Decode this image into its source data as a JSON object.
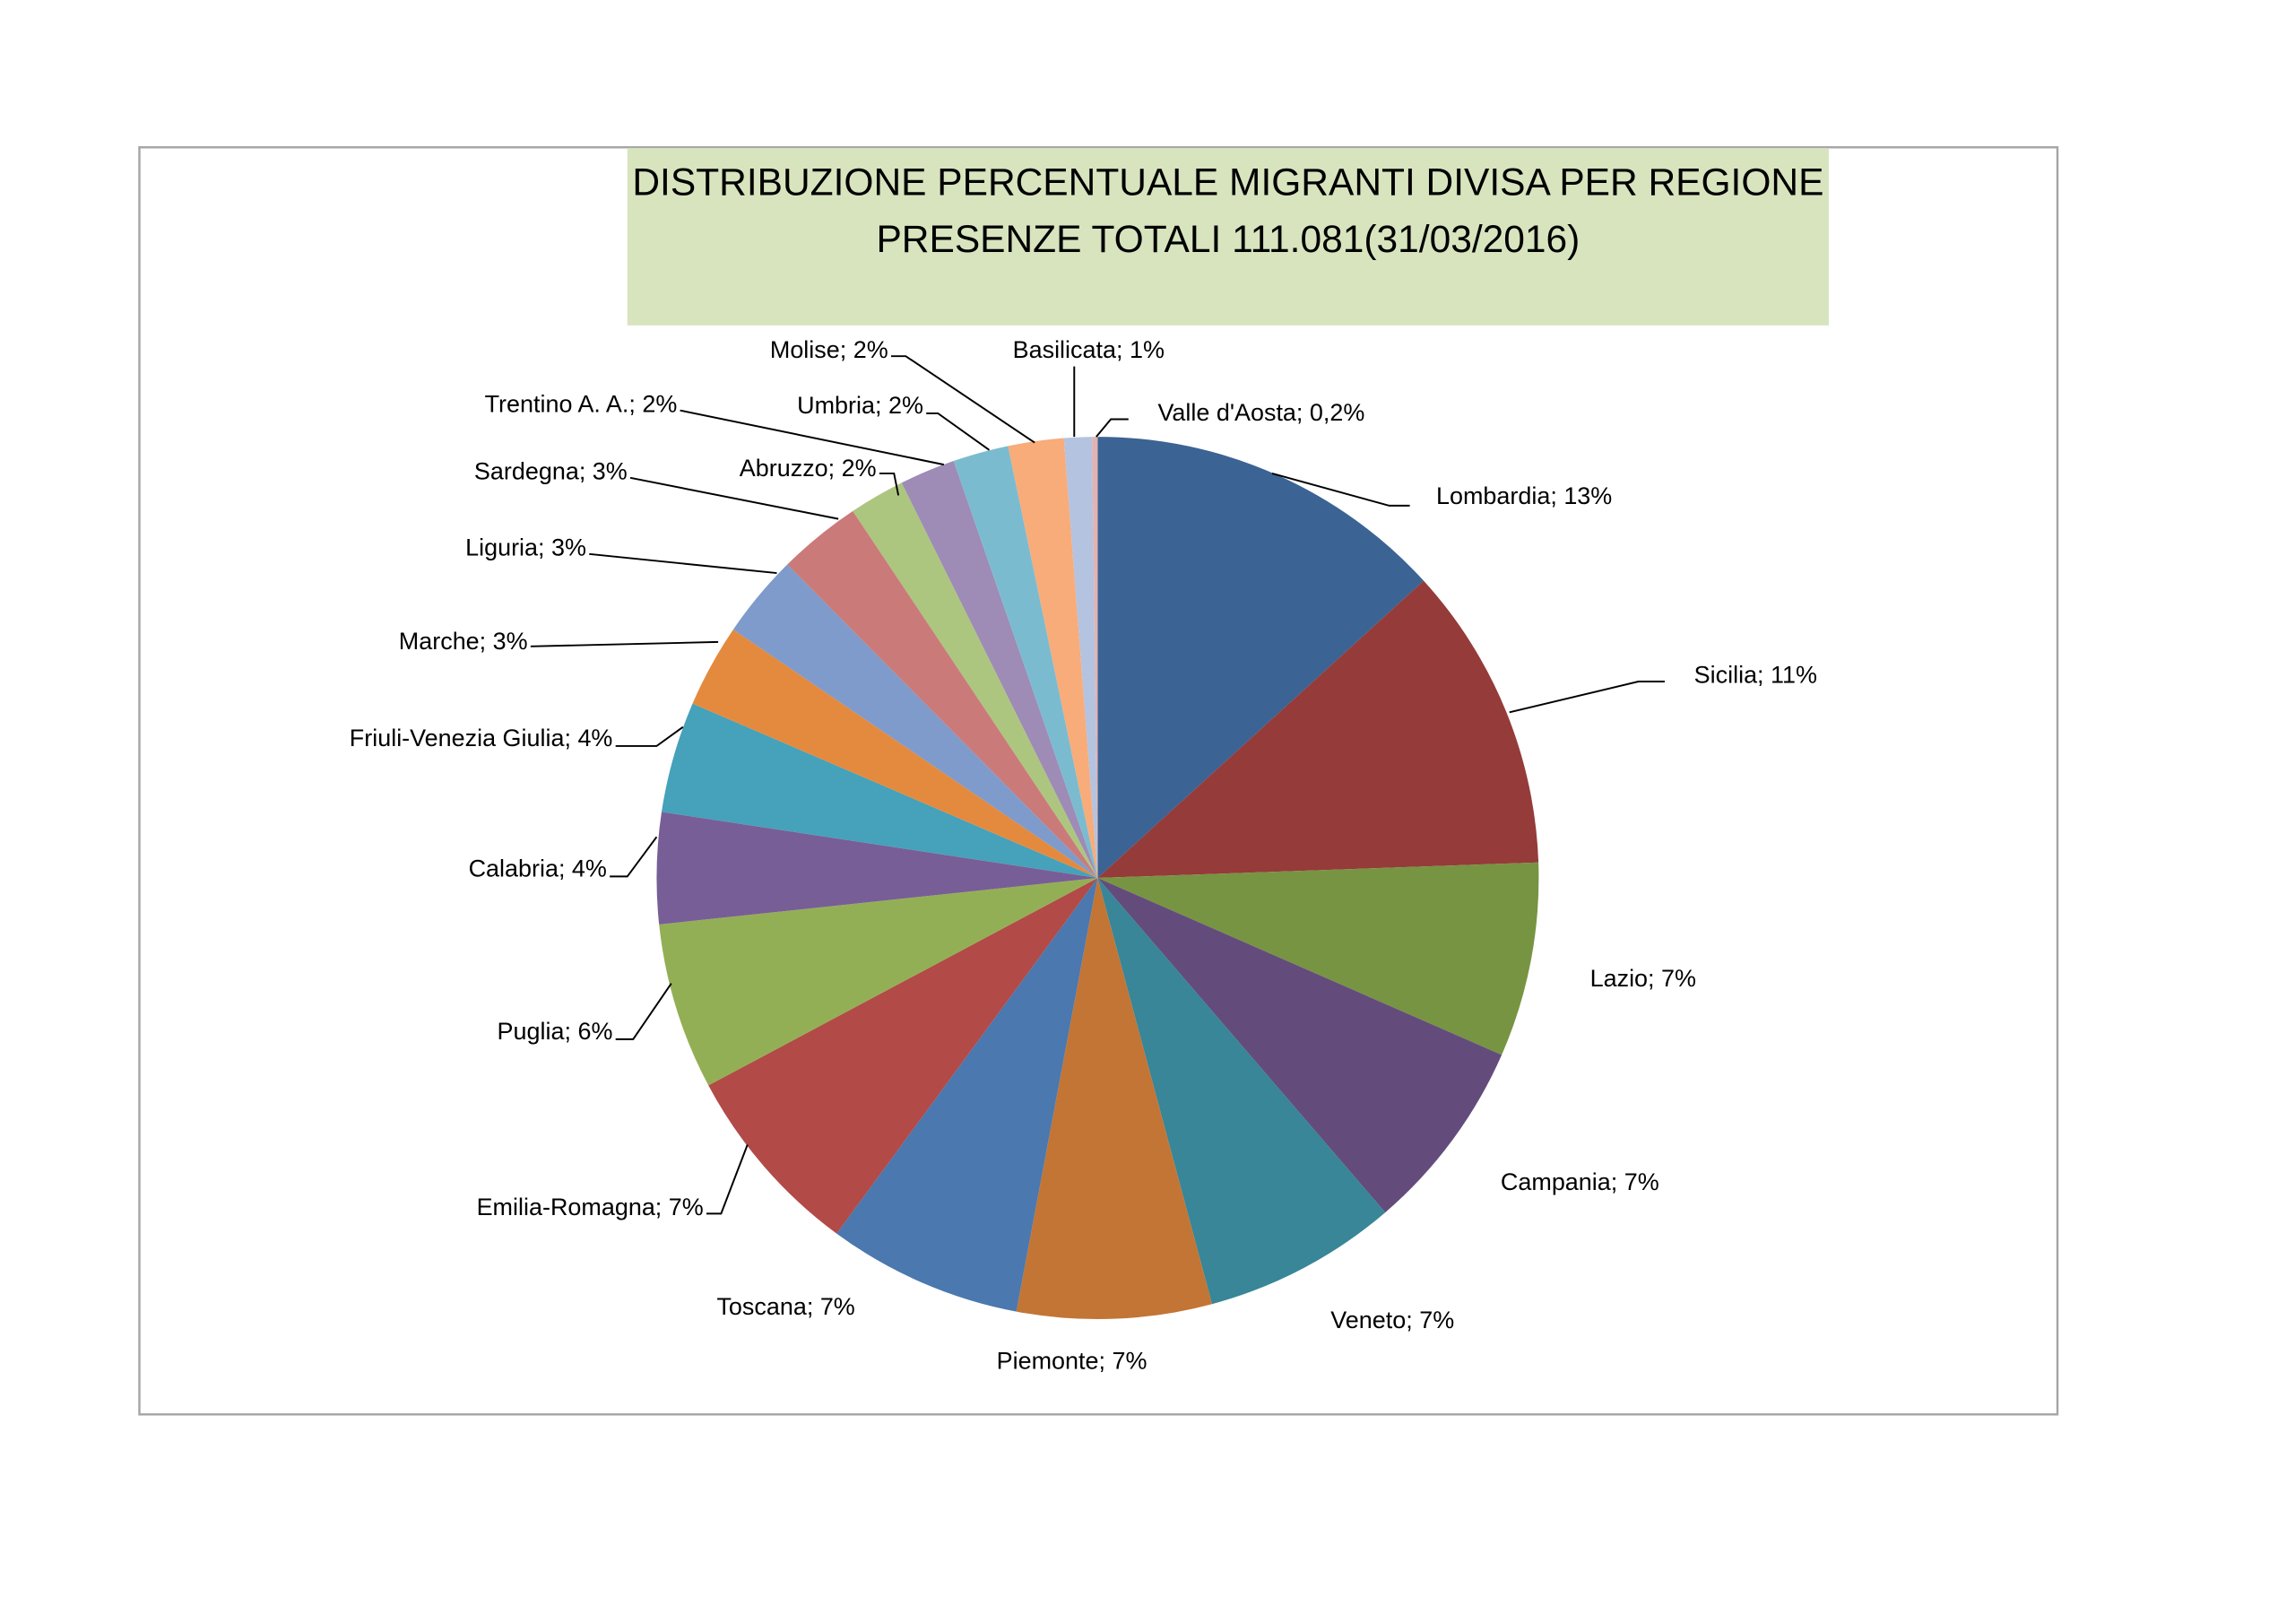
{
  "chart_data": {
    "type": "pie",
    "title": [
      "DISTRIBUZIONE PERCENTUALE MIGRANTI DIVISA PER REGIONE",
      "PRESENZE TOTALI 111.081(31/03/2016)"
    ],
    "unit": "%",
    "start": "12 o'clock, clockwise",
    "slices": [
      {
        "name": "Lombardia",
        "value": 13,
        "label": "Lombardia; 13%",
        "color": "#3B6394"
      },
      {
        "name": "Sicilia",
        "value": 11,
        "label": "Sicilia; 11%",
        "color": "#953B39"
      },
      {
        "name": "Lazio",
        "value": 7,
        "label": "Lazio; 7%",
        "color": "#779442"
      },
      {
        "name": "Campania",
        "value": 7,
        "label": "Campania; 7%",
        "color": "#634C7C"
      },
      {
        "name": "Veneto",
        "value": 7,
        "label": "Veneto; 7%",
        "color": "#388698"
      },
      {
        "name": "Piemonte",
        "value": 7,
        "label": "Piemonte; 7%",
        "color": "#C27535"
      },
      {
        "name": "Toscana",
        "value": 7,
        "label": "Toscana; 7%",
        "color": "#4A78AF"
      },
      {
        "name": "Emilia-Romagna",
        "value": 7,
        "label": "Emilia-Romagna; 7%",
        "color": "#B24A47"
      },
      {
        "name": "Puglia",
        "value": 6,
        "label": "Puglia; 6%",
        "color": "#93AF55"
      },
      {
        "name": "Calabria",
        "value": 4,
        "label": "Calabria; 4%",
        "color": "#785E96"
      },
      {
        "name": "Friuli-Venezia Giulia",
        "value": 4,
        "label": "Friuli-Venezia Giulia; 4%",
        "color": "#46A1BA"
      },
      {
        "name": "Marche",
        "value": 3,
        "label": "Marche; 3%",
        "color": "#E48A3E"
      },
      {
        "name": "Liguria",
        "value": 3,
        "label": "Liguria; 3%",
        "color": "#7E9BCB"
      },
      {
        "name": "Sardegna",
        "value": 3,
        "label": "Sardegna; 3%",
        "color": "#CA7B79"
      },
      {
        "name": "Abruzzo",
        "value": 2,
        "label": "Abruzzo; 2%",
        "color": "#ADC67F"
      },
      {
        "name": "Trentino A. A.",
        "value": 2,
        "label": "Trentino A. A.; 2%",
        "color": "#9E8BB6"
      },
      {
        "name": "Umbria",
        "value": 2,
        "label": "Umbria; 2%",
        "color": "#7BBBD0"
      },
      {
        "name": "Molise",
        "value": 2,
        "label": "Molise; 2%",
        "color": "#F7AC7A"
      },
      {
        "name": "Basilicata",
        "value": 1,
        "label": "Basilicata; 1%",
        "color": "#B4C3DF"
      },
      {
        "name": "Valle d'Aosta",
        "value": 0.2,
        "label": "Valle d'Aosta; 0,2%",
        "color": "#E3B2B1"
      }
    ],
    "legend": "none (data labels)"
  }
}
